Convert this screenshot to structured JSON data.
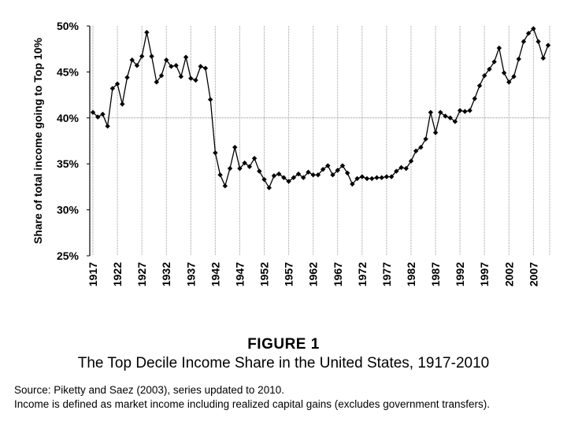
{
  "chart_data": {
    "type": "line",
    "ylabel": "Share of total income going to Top 10%",
    "yticks": [
      "25%",
      "30%",
      "35%",
      "40%",
      "45%",
      "50%"
    ],
    "ylim": [
      25,
      50
    ],
    "xlim": [
      1917,
      2010
    ],
    "xticks": [
      "1917",
      "1922",
      "1927",
      "1932",
      "1937",
      "1942",
      "1947",
      "1952",
      "1957",
      "1962",
      "1967",
      "1972",
      "1977",
      "1982",
      "1987",
      "1992",
      "1997",
      "2002",
      "2007"
    ],
    "reference_line_y": 40,
    "grid": "vertical lines at tick years",
    "legend": "none",
    "marker": "diamond",
    "color": "#000000",
    "x": [
      1917,
      1918,
      1919,
      1920,
      1921,
      1922,
      1923,
      1924,
      1925,
      1926,
      1927,
      1928,
      1929,
      1930,
      1931,
      1932,
      1933,
      1934,
      1935,
      1936,
      1937,
      1938,
      1939,
      1940,
      1941,
      1942,
      1943,
      1944,
      1945,
      1946,
      1947,
      1948,
      1949,
      1950,
      1951,
      1952,
      1953,
      1954,
      1955,
      1956,
      1957,
      1958,
      1959,
      1960,
      1961,
      1962,
      1963,
      1964,
      1965,
      1966,
      1967,
      1968,
      1969,
      1970,
      1971,
      1972,
      1973,
      1974,
      1975,
      1976,
      1977,
      1978,
      1979,
      1980,
      1981,
      1982,
      1983,
      1984,
      1985,
      1986,
      1987,
      1988,
      1989,
      1990,
      1991,
      1992,
      1993,
      1994,
      1995,
      1996,
      1997,
      1998,
      1999,
      2000,
      2001,
      2002,
      2003,
      2004,
      2005,
      2006,
      2007,
      2008,
      2009,
      2010
    ],
    "y": [
      40.6,
      40.1,
      40.4,
      39.1,
      43.2,
      43.7,
      41.5,
      44.4,
      46.3,
      45.7,
      46.7,
      49.3,
      46.7,
      43.9,
      44.6,
      46.3,
      45.6,
      45.7,
      44.5,
      46.6,
      44.3,
      44.1,
      45.6,
      45.4,
      42,
      36.2,
      33.8,
      32.6,
      34.5,
      36.8,
      34.5,
      35.1,
      34.7,
      35.6,
      34.2,
      33.3,
      32.4,
      33.7,
      33.9,
      33.5,
      33.1,
      33.5,
      33.9,
      33.5,
      34.1,
      33.8,
      33.8,
      34.4,
      34.8,
      33.8,
      34.3,
      34.8,
      34,
      32.8,
      33.4,
      33.6,
      33.4,
      33.4,
      33.5,
      33.5,
      33.6,
      33.6,
      34.2,
      34.6,
      34.5,
      35.3,
      36.4,
      36.8,
      37.7,
      40.6,
      38.4,
      40.6,
      40.2,
      40,
      39.6,
      40.8,
      40.7,
      40.8,
      42.1,
      43.5,
      44.6,
      45.3,
      46.1,
      47.6,
      44.9,
      43.9,
      44.5,
      46.4,
      48.3,
      49.2,
      49.7,
      48.3,
      46.5,
      47.9
    ]
  },
  "caption": {
    "figure_label": "FIGURE 1",
    "title": "The Top Decile Income Share in the United States, 1917-2010"
  },
  "source": {
    "line1": "Source: Piketty and Saez (2003), series updated to 2010.",
    "line2": "Income is defined as market income including realized capital gains (excludes government transfers)."
  }
}
